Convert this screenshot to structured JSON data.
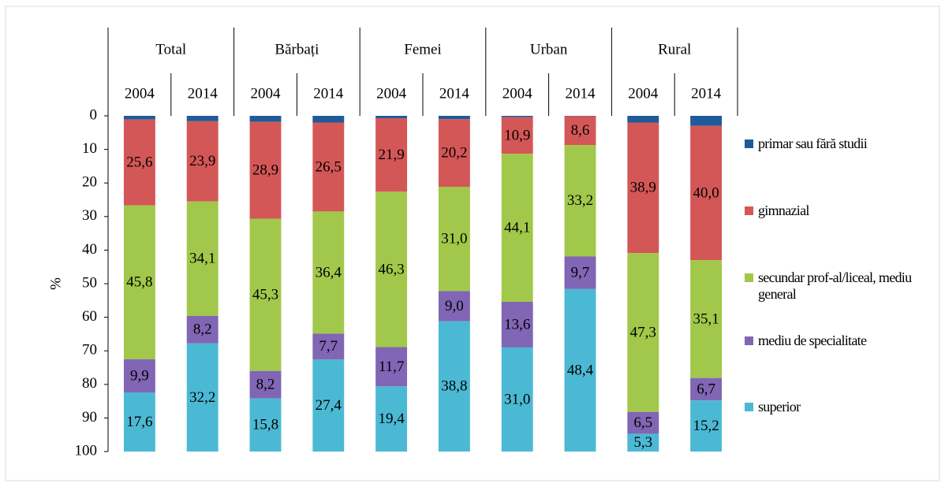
{
  "chart_data": {
    "type": "stacked-bar",
    "y_label": "%",
    "groups": [
      "Total",
      "Bărbați",
      "Femei",
      "Urban",
      "Rural"
    ],
    "categories": [
      "2004",
      "2014",
      "2004",
      "2014",
      "2004",
      "2014",
      "2004",
      "2014",
      "2004",
      "2014"
    ],
    "ylim": [
      0,
      100
    ],
    "inverted": true,
    "yticks": [
      0,
      10,
      20,
      30,
      40,
      50,
      60,
      70,
      80,
      90,
      100
    ],
    "series": [
      {
        "name": "primar sau fără studii",
        "color": "#1f5b98",
        "values": [
          1.1,
          1.6,
          1.8,
          2.0,
          0.7,
          1.0,
          0.4,
          0.1,
          2.0,
          3.0
        ]
      },
      {
        "name": "gimnazial",
        "color": "#d45757",
        "values": [
          25.6,
          23.9,
          28.9,
          26.5,
          21.9,
          20.2,
          10.9,
          8.6,
          38.9,
          40.0
        ],
        "value_labels": [
          "25,6",
          "23,9",
          "28,9",
          "26,5",
          "21,9",
          "20,2",
          "10,9",
          "8,6",
          "38,9",
          "40,0"
        ]
      },
      {
        "name": "secundar prof-al/liceal, mediu general",
        "color": "#a1c84a",
        "values": [
          45.8,
          34.1,
          45.3,
          36.4,
          46.3,
          31.0,
          44.1,
          33.2,
          47.3,
          35.1
        ],
        "value_labels": [
          "45,8",
          "34,1",
          "45,3",
          "36,4",
          "46,3",
          "31,0",
          "44,1",
          "33,2",
          "47,3",
          "35,1"
        ]
      },
      {
        "name": "mediu de specialitate",
        "color": "#8066b5",
        "values": [
          9.9,
          8.2,
          8.2,
          7.7,
          11.7,
          9.0,
          13.6,
          9.7,
          6.5,
          6.7
        ],
        "value_labels": [
          "9,9",
          "8,2",
          "8,2",
          "7,7",
          "11,7",
          "9,0",
          "13,6",
          "9,7",
          "6,5",
          "6,7"
        ]
      },
      {
        "name": "superior",
        "color": "#4cb9d4",
        "values": [
          17.6,
          32.2,
          15.8,
          27.4,
          19.4,
          38.8,
          31.0,
          48.4,
          5.3,
          15.2
        ],
        "value_labels": [
          "17,6",
          "32,2",
          "15,8",
          "27,4",
          "19,4",
          "38,8",
          "31,0",
          "48,4",
          "5,3",
          "15,2"
        ]
      }
    ]
  }
}
